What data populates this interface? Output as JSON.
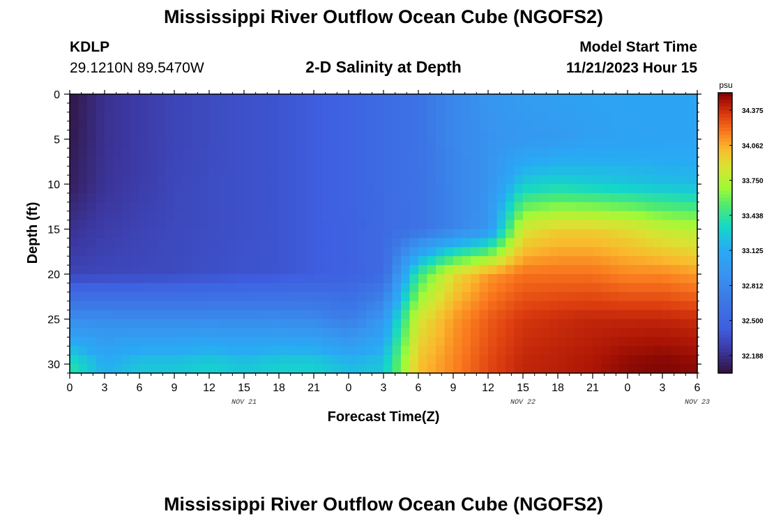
{
  "header": {
    "title": "Mississippi River Outflow Ocean Cube (NGOFS2)",
    "station": "KDLP",
    "coordinates": "29.1210N  89.5470W",
    "subtitle": "2-D Salinity at Depth",
    "model_start_label": "Model Start Time",
    "model_start_value": "11/21/2023 Hour 15"
  },
  "footer": {
    "title": "Mississippi River Outflow Ocean Cube (NGOFS2)"
  },
  "chart_data": {
    "type": "heatmap",
    "title": "2-D Salinity at Depth",
    "xlabel": "Forecast Time(Z)",
    "ylabel": "Depth (ft)",
    "x_ticks": [
      "0",
      "3",
      "6",
      "9",
      "12",
      "15",
      "18",
      "21",
      "0",
      "3",
      "6",
      "9",
      "12",
      "15",
      "18",
      "21",
      "0",
      "3",
      "6"
    ],
    "date_labels": [
      {
        "label": "NOV 21",
        "at_hour": 15
      },
      {
        "label": "NOV 22",
        "at_hour": 39
      },
      {
        "label": "NOV 23",
        "at_hour": 54
      }
    ],
    "x_range_hours": [
      0,
      54
    ],
    "y_ticks": [
      0,
      5,
      10,
      15,
      20,
      25,
      30
    ],
    "ylim": [
      0,
      31
    ],
    "y_inverted": true,
    "colorbar": {
      "unit": "psu",
      "ticks": [
        "34.375",
        "34.062",
        "33.750",
        "33.438",
        "33.125",
        "32.812",
        "32.500",
        "32.188"
      ],
      "min": 32.031,
      "max": 34.531
    },
    "grid_x_hours": [
      0,
      3,
      6,
      9,
      12,
      15,
      18,
      21,
      24,
      27,
      30,
      33,
      36,
      39,
      42,
      45,
      48,
      51,
      54
    ],
    "grid_y_depths": [
      0,
      5,
      10,
      15,
      20,
      25,
      30
    ],
    "salinity_psu": [
      [
        32.05,
        32.2,
        32.25,
        32.3,
        32.33,
        32.36,
        32.38,
        32.42,
        32.47,
        32.56,
        32.63,
        32.8,
        32.93,
        33.0,
        33.03,
        33.05,
        33.06,
        33.07,
        33.08
      ],
      [
        32.07,
        32.2,
        32.25,
        32.3,
        32.33,
        32.36,
        32.38,
        32.42,
        32.47,
        32.56,
        32.63,
        32.8,
        32.9,
        32.95,
        32.98,
        33.03,
        33.05,
        33.06,
        33.07
      ],
      [
        32.1,
        32.21,
        32.26,
        32.31,
        32.34,
        32.36,
        32.38,
        32.42,
        32.47,
        32.56,
        32.62,
        32.79,
        32.9,
        33.28,
        33.32,
        33.28,
        33.25,
        33.22,
        33.2
      ],
      [
        32.2,
        32.26,
        32.29,
        32.32,
        32.34,
        32.36,
        32.38,
        32.42,
        32.46,
        32.55,
        32.62,
        32.78,
        32.93,
        33.85,
        33.95,
        33.95,
        33.9,
        33.8,
        33.75
      ],
      [
        32.3,
        32.31,
        32.32,
        32.33,
        32.35,
        32.37,
        32.38,
        32.42,
        32.45,
        32.54,
        33.45,
        33.9,
        34.1,
        34.2,
        34.2,
        34.2,
        34.15,
        34.15,
        34.1
      ],
      [
        32.85,
        32.85,
        32.84,
        32.84,
        32.84,
        32.84,
        32.84,
        32.82,
        32.72,
        32.95,
        33.85,
        34.1,
        34.25,
        34.35,
        34.38,
        34.4,
        34.4,
        34.4,
        34.38
      ],
      [
        33.4,
        33.15,
        33.25,
        33.25,
        33.3,
        33.25,
        33.3,
        33.3,
        33.2,
        33.25,
        34.0,
        34.15,
        34.3,
        34.4,
        34.42,
        34.45,
        34.5,
        34.52,
        34.5
      ]
    ]
  }
}
